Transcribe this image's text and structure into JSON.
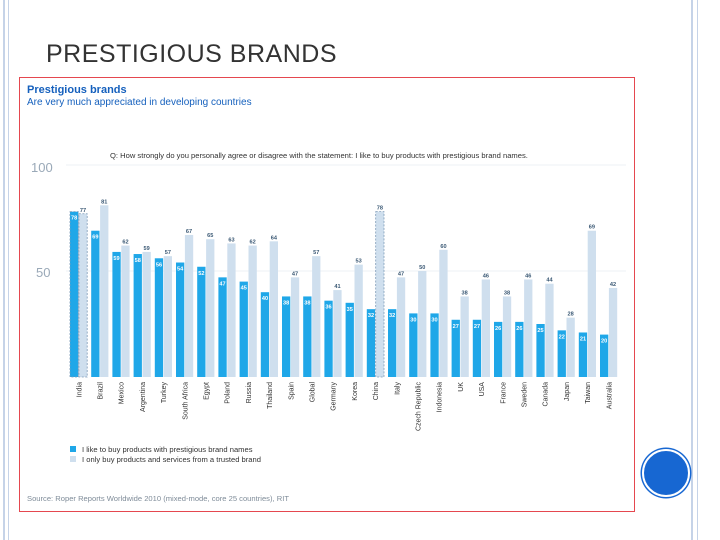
{
  "slide": {
    "title": "PRESTIGIOUS BRANDS"
  },
  "colors": {
    "series1": "#1fa7e8",
    "series2": "#cfdfee",
    "heading": "#1560bd",
    "frame": "#e5474f",
    "accent_circle": "#1767d2"
  },
  "chart_data": {
    "type": "bar",
    "title": "Prestigious brands",
    "subtitle": "Are very much appreciated in developing countries",
    "question": "Q: How strongly do you personally agree or disagree with the statement: I like to buy products with prestigious brand names.",
    "y_tick_labels": [
      "100",
      "50"
    ],
    "ylim": [
      0,
      100
    ],
    "categories": [
      "India",
      "Brazil",
      "Mexico",
      "Argentina",
      "Turkey",
      "South Africa",
      "Egypt",
      "Poland",
      "Russia",
      "Thailand",
      "Spain",
      "Global",
      "Germany",
      "Korea",
      "China",
      "Italy",
      "Czech Republic",
      "Indonesia",
      "UK",
      "USA",
      "France",
      "Sweden",
      "Canada",
      "Japan",
      "Taiwan",
      "Australia"
    ],
    "series": [
      {
        "name": "I like to buy products with prestigious brand names",
        "values": [
          78,
          69,
          59,
          58,
          56,
          54,
          52,
          47,
          45,
          40,
          38,
          38,
          36,
          35,
          32,
          32,
          30,
          30,
          27,
          27,
          26,
          26,
          25,
          22,
          21,
          20
        ]
      },
      {
        "name": "I only buy products and services from a trusted brand",
        "values": [
          77,
          81,
          62,
          59,
          57,
          67,
          65,
          63,
          62,
          64,
          47,
          57,
          41,
          53,
          78,
          47,
          50,
          60,
          38,
          46,
          38,
          46,
          44,
          28,
          69,
          42
        ]
      }
    ],
    "value_labels": {
      "series1": [
        "78",
        "69",
        "59",
        "58",
        "56",
        "54",
        "52",
        "47",
        "45",
        "40",
        "38",
        "38",
        "36",
        "35",
        "32",
        "32",
        "30",
        "30",
        "27",
        "27",
        "26",
        "26",
        "25",
        "22",
        "21",
        "20"
      ],
      "series2": [
        "77",
        "81",
        "62",
        "59",
        "57",
        "67",
        "65",
        "63",
        "62",
        "64",
        "47",
        "57",
        "41",
        "53",
        "78",
        "47",
        "50",
        "60",
        "38",
        "46",
        "38",
        "46",
        "44",
        "28",
        "69",
        "42"
      ]
    },
    "legend": {
      "position": "bottom-left",
      "items": [
        "I like to buy products with prestigious brand names",
        "I only buy products and services from a trusted brand"
      ]
    },
    "source": "Source: Roper Reports Worldwide 2010 (mixed-mode, core 25 countries), RIT"
  }
}
